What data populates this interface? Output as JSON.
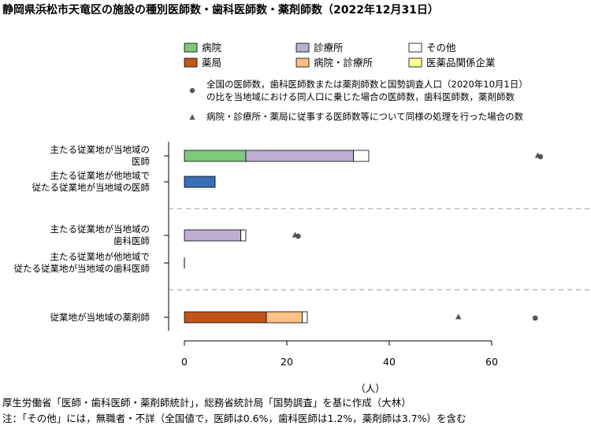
{
  "title": "静岡県浜松市天竜区の施設の種別医師数・歯科医師数・薬剤師数（2022年12月31日）",
  "legend": {
    "items": [
      {
        "label": "病院",
        "color": "#7fc97f"
      },
      {
        "label": "診療所",
        "color": "#beaed4"
      },
      {
        "label": "その他",
        "color": "#ffffff"
      },
      {
        "label": "薬局",
        "color": "#c0561a"
      },
      {
        "label": "病院・診療所",
        "color": "#fdc086"
      },
      {
        "label": "医薬品関係企業",
        "color": "#ffff99"
      }
    ],
    "circle_note_1": "全国の医師数，歯科医師数または薬剤師数と国勢調査人口（2020年10月1日）",
    "circle_note_2": "の比を当地域における同人口に乗じた場合の医師数，歯科医師数，薬剤師数",
    "triangle_note": "病院・診療所・薬局に従事する医師数等について同様の処理を行った場合の数"
  },
  "chart_data": {
    "type": "bar",
    "stacked": true,
    "orientation": "horizontal",
    "categories": [
      [
        "主たる従業地が当地域の",
        "医師"
      ],
      [
        "主たる従業地が他地域で",
        "従たる従業地が当地域の医師"
      ],
      [
        "主たる従業地が当地域の",
        "歯科医師"
      ],
      [
        "主たる従業地が他地域で",
        "従たる従業地が当地域の歯科医師"
      ],
      [
        "従業地が当地域の薬剤師"
      ]
    ],
    "bars": [
      {
        "segments": [
          {
            "series": "病院",
            "value": 12
          },
          {
            "series": "診療所",
            "value": 21
          },
          {
            "series": "その他",
            "value": 3
          }
        ],
        "color": null
      },
      {
        "segments": [
          {
            "series": null,
            "value": 6
          }
        ],
        "color": "#3a6fb5"
      },
      {
        "segments": [
          {
            "series": "診療所",
            "value": 11
          },
          {
            "series": "その他",
            "value": 1
          }
        ],
        "color": null
      },
      {
        "segments": [
          {
            "series": null,
            "value": 0
          }
        ],
        "color": null
      },
      {
        "segments": [
          {
            "series": "薬局",
            "value": 16
          },
          {
            "series": "病院・診療所",
            "value": 7
          },
          {
            "series": "その他",
            "value": 1
          }
        ],
        "color": null
      }
    ],
    "circles": [
      69.5,
      null,
      22.2,
      null,
      68.5
    ],
    "triangles": [
      69.0,
      null,
      21.6,
      null,
      53.5
    ],
    "xlim": [
      0,
      70
    ],
    "xticks": [
      0,
      20,
      40,
      60
    ],
    "xlabel": "（人）",
    "group_separators_after": [
      1,
      3
    ]
  },
  "footer": {
    "source": "厚生労働省「医師・歯科医師・薬剤師統計」，総務省統計局「国勢調査」を基に作成（大林）",
    "note": "注：「その他」には，無職者・不詳（全国値で，医師は0.6%，歯科医師は1.2%，薬剤師は3.7%）を含む"
  }
}
